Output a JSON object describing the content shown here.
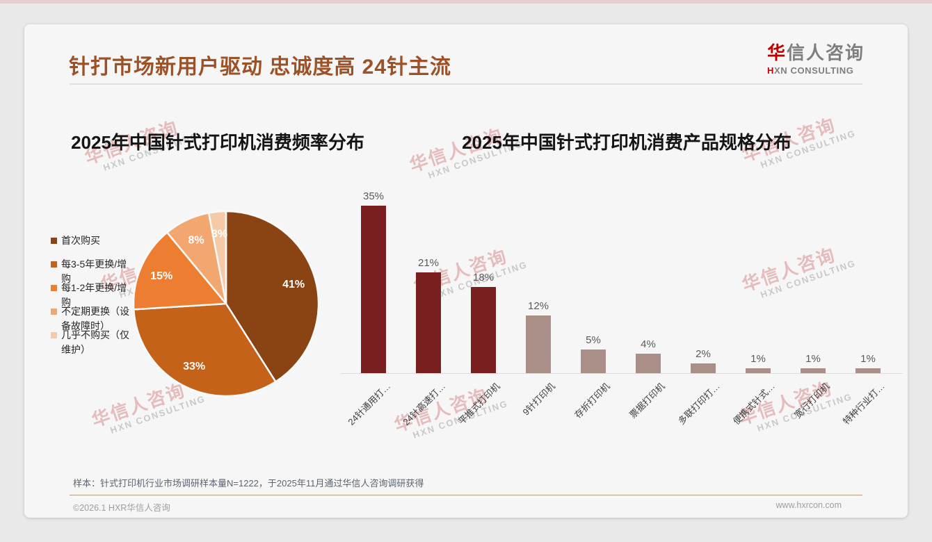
{
  "slide": {
    "title": "针打市场新用户驱动 忠诚度高 24针主流",
    "footnote": "样本：针式打印机行业市场调研样本量N=1222，于2025年11月通过华信人咨询调研获得",
    "footer_left": "©2026.1 HXR华信人咨询",
    "footer_right": "www.hxrcon.com"
  },
  "logo": {
    "cn_accent": "华",
    "cn_rest": "信人咨询",
    "en_accent": "H",
    "en_rest": "XN CONSULTING"
  },
  "watermark": {
    "line1": "华信人咨询",
    "line2": "HXN CONSULTING"
  },
  "colors": {
    "title_brown": "#9C5126",
    "bar_dark_red": "#7A1F1F",
    "bar_rosy": "#A98F87",
    "logo_red": "#C00000",
    "axis_gray": "#D9D9D9"
  },
  "chart_data": [
    {
      "type": "pie",
      "title": "2025年中国针式打印机消费频率分布",
      "legend_position": "left",
      "data_label_format": "percent",
      "slices": [
        {
          "label": "首次购买",
          "value": 41,
          "color": "#8A4413"
        },
        {
          "label": "每3-5年更换/增购",
          "value": 33,
          "color": "#C5621A"
        },
        {
          "label": "每1-2年更换/增购",
          "value": 15,
          "color": "#ED7D31"
        },
        {
          "label": "不定期更换（设备故障时）",
          "value": 8,
          "color": "#F2A770"
        },
        {
          "label": "几乎不购买（仅维护）",
          "value": 3,
          "color": "#F6CAA7"
        }
      ]
    },
    {
      "type": "bar",
      "title": "2025年中国针式打印机消费产品规格分布",
      "categories": [
        "24针通用打…",
        "24针高速打…",
        "平推式打印机",
        "9针打印机",
        "存折打印机",
        "票据打印机",
        "多联打印打…",
        "便携式针式…",
        "宽行打印机",
        "特种行业打…"
      ],
      "values": [
        35,
        21,
        18,
        12,
        5,
        4,
        2,
        1,
        1,
        1
      ],
      "bar_colors": [
        "#7A1F1F",
        "#7A1F1F",
        "#7A1F1F",
        "#A98F87",
        "#A98F87",
        "#A98F87",
        "#A98F87",
        "#A98F87",
        "#A98F87",
        "#A98F87"
      ],
      "value_labels": "above",
      "ylim": [
        0,
        35
      ],
      "gridlines": false
    }
  ]
}
